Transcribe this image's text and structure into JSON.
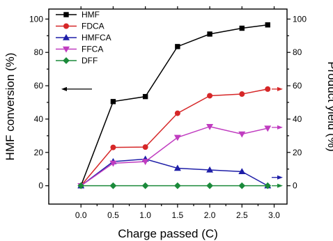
{
  "chart_data": {
    "type": "line",
    "xlabel": "Charge passed (C)",
    "ylabel_left": "HMF conversion (%)",
    "ylabel_right": "Product yield (%)",
    "xlim": [
      -0.5,
      3.2
    ],
    "ylim": [
      -11,
      106
    ],
    "xticks": [
      0.0,
      0.5,
      1.0,
      1.5,
      2.0,
      2.5,
      3.0
    ],
    "xtick_labels": [
      "0.0",
      "0.5",
      "1.0",
      "1.5",
      "2.0",
      "2.5",
      "3.0"
    ],
    "yticks": [
      0,
      20,
      40,
      60,
      80,
      100
    ],
    "ytick_labels": [
      "0",
      "20",
      "40",
      "60",
      "80",
      "100"
    ],
    "grid": false,
    "legend_position": "top-left",
    "series": [
      {
        "name": "HMF",
        "color": "#000000",
        "marker": "square",
        "axis": "left",
        "x": [
          0,
          0.5,
          1.0,
          1.5,
          2.0,
          2.5,
          2.9
        ],
        "values": [
          0,
          50.5,
          53.5,
          83.5,
          91,
          94.5,
          96.5
        ]
      },
      {
        "name": "FDCA",
        "color": "#d62728",
        "marker": "circle",
        "axis": "right",
        "x": [
          0,
          0.5,
          1.0,
          1.5,
          2.0,
          2.5,
          2.9
        ],
        "values": [
          0,
          23,
          23.2,
          43.5,
          54,
          55,
          58
        ]
      },
      {
        "name": "HMFCA",
        "color": "#1f1fa8",
        "marker": "triangle-up",
        "axis": "right",
        "x": [
          0,
          0.5,
          1.0,
          1.5,
          2.0,
          2.5,
          2.9
        ],
        "values": [
          0,
          14.5,
          16,
          10.5,
          9.5,
          8.5,
          0
        ]
      },
      {
        "name": "FFCA",
        "color": "#c03cc0",
        "marker": "triangle-down",
        "axis": "right",
        "x": [
          0,
          0.5,
          1.0,
          1.5,
          2.0,
          2.5,
          2.9
        ],
        "values": [
          0,
          13.5,
          14.5,
          29,
          35.5,
          31,
          34.5
        ]
      },
      {
        "name": "DFF",
        "color": "#1b8a3a",
        "marker": "diamond",
        "axis": "right",
        "x": [
          0,
          0.5,
          1.0,
          1.5,
          2.0,
          2.5,
          2.9
        ],
        "values": [
          0,
          0,
          0,
          0,
          0,
          0,
          0
        ]
      }
    ],
    "axis_indicators": [
      {
        "series": "HMF",
        "side": "left",
        "value": 58
      },
      {
        "series": "FDCA",
        "side": "right",
        "value": 58
      },
      {
        "series": "FFCA",
        "side": "right",
        "value": 35
      },
      {
        "series": "HMFCA",
        "side": "right",
        "value": 5
      },
      {
        "series": "DFF",
        "side": "right",
        "value": 0
      }
    ]
  }
}
